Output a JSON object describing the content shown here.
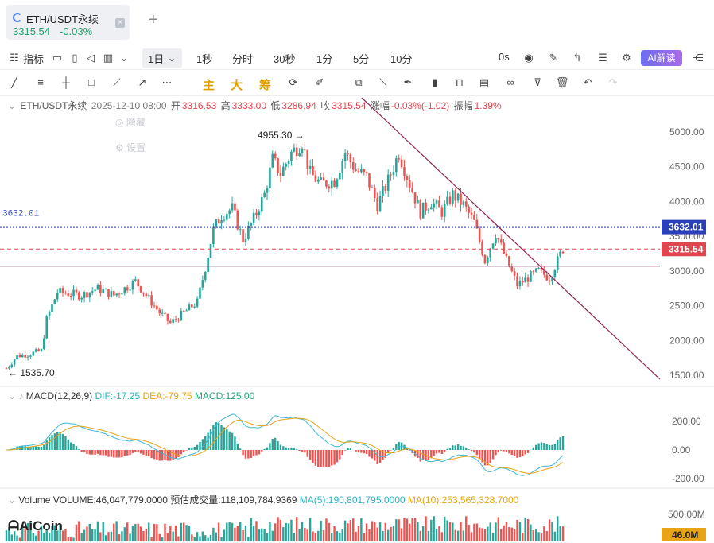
{
  "tab": {
    "title": "ETH/USDT永续",
    "price": "3315.54",
    "change": "-0.03%",
    "close_icon": "close-icon"
  },
  "toolbar": {
    "indicators": "指标",
    "periods": [
      "1日",
      "1秒",
      "分时",
      "30秒",
      "1分",
      "5分",
      "10分"
    ],
    "active_period": "1日",
    "countdown": "0s",
    "ai_label": "AI解读"
  },
  "drawing_toolbar": {
    "labels": [
      "主",
      "大",
      "筹"
    ]
  },
  "ohlc": {
    "symbol": "ETH/USDT永续",
    "datetime": "2025-12-10 08:00",
    "open_label": "开",
    "open": "3316.53",
    "high_label": "高",
    "high": "3333.00",
    "low_label": "低",
    "low": "3286.94",
    "close_label": "收",
    "close": "3315.54",
    "change_label": "涨幅",
    "change": "-0.03%(-1.02)",
    "amp_label": "振幅",
    "amp": "1.39%"
  },
  "ghost_menu": {
    "hide": "隐藏",
    "settings": "设置"
  },
  "macd": {
    "label": "MACD(12,26,9)",
    "dif": "DIF:-17.25",
    "dea": "DEA:-79.75",
    "macd": "MACD:125.00"
  },
  "volume": {
    "label": "Volume",
    "volume": "VOLUME:46,047,779.0000",
    "forecast": "预估成交量:118,109,784.9369",
    "ma5": "MA(5):190,801,795.0000",
    "ma10": "MA(10):253,565,328.7000"
  },
  "brand": "AiCoin",
  "colors": {
    "up": "#26a69a",
    "down": "#ef5350",
    "line": "#8b2252",
    "hline": "#2b3fb8",
    "price_tag": "#e0464e",
    "dif": "#3fb6d6",
    "dea": "#e8a317"
  },
  "chart_data": {
    "type": "candlestick",
    "y_axis": {
      "ticks": [
        "5000.00",
        "4500.00",
        "4000.00",
        "3500.00",
        "3000.00",
        "2500.00",
        "2000.00",
        "1500.00"
      ],
      "range": [
        1400,
        5150
      ]
    },
    "max_label": "4955.30",
    "min_label": "1535.70",
    "hline_label": "3632.01",
    "hline_value": 3632.01,
    "support_value": 3070,
    "last_price_tag": "3315.54",
    "last_price": 3315.54,
    "trendline": [
      {
        "x": 0,
        "y": 5150
      },
      {
        "x": 1,
        "y": 1450
      }
    ],
    "path": [
      [
        0,
        1600
      ],
      [
        4,
        1780
      ],
      [
        8,
        1800
      ],
      [
        13,
        1850
      ],
      [
        15,
        2300
      ],
      [
        19,
        2700
      ],
      [
        28,
        2650
      ],
      [
        34,
        2750
      ],
      [
        40,
        2650
      ],
      [
        44,
        2750
      ],
      [
        48,
        2850
      ],
      [
        53,
        2600
      ],
      [
        57,
        2400
      ],
      [
        61,
        2250
      ],
      [
        66,
        2400
      ],
      [
        71,
        2550
      ],
      [
        74,
        3050
      ],
      [
        77,
        3600
      ],
      [
        80,
        3800
      ],
      [
        84,
        3900
      ],
      [
        88,
        3450
      ],
      [
        92,
        3750
      ],
      [
        96,
        4100
      ],
      [
        99,
        4600
      ],
      [
        102,
        4400
      ],
      [
        106,
        4700
      ],
      [
        110,
        4850
      ],
      [
        113,
        4400
      ],
      [
        117,
        4250
      ],
      [
        122,
        4300
      ],
      [
        126,
        4700
      ],
      [
        130,
        4450
      ],
      [
        134,
        4350
      ],
      [
        138,
        3950
      ],
      [
        142,
        4300
      ],
      [
        146,
        4700
      ],
      [
        150,
        4250
      ],
      [
        154,
        3850
      ],
      [
        158,
        4000
      ],
      [
        162,
        3850
      ],
      [
        166,
        4100
      ],
      [
        170,
        3950
      ],
      [
        174,
        3700
      ],
      [
        178,
        3150
      ],
      [
        182,
        3550
      ],
      [
        186,
        3150
      ],
      [
        190,
        2800
      ],
      [
        194,
        2900
      ],
      [
        198,
        3000
      ],
      [
        202,
        2900
      ],
      [
        205,
        3150
      ],
      [
        207,
        3320
      ]
    ],
    "volume_axis": {
      "ticks": [
        "500.00M"
      ],
      "last_tag": "46.0M"
    },
    "macd_axis": {
      "ticks": [
        "200.00",
        "0.00",
        "-200.00"
      ],
      "range": [
        -260,
        260
      ]
    }
  }
}
